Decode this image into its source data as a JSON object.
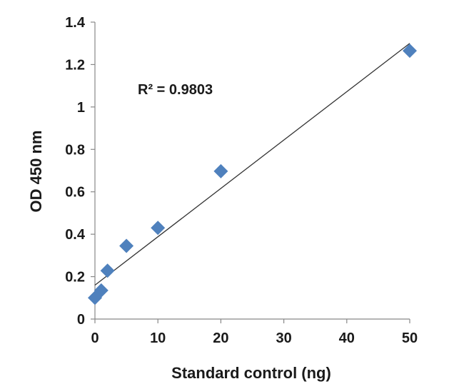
{
  "chart_data": {
    "type": "scatter",
    "xlabel": "Standard control (ng)",
    "ylabel": "OD 450 nm",
    "xlim": [
      0,
      50
    ],
    "ylim": [
      0,
      1.4
    ],
    "x_ticks": [
      "0",
      "10",
      "20",
      "30",
      "40",
      "50"
    ],
    "y_ticks": [
      "0",
      "0.2",
      "0.4",
      "0.6",
      "0.8",
      "1",
      "1.2",
      "1.4"
    ],
    "grid": false,
    "legend": "none",
    "marker_color": "#4f81bd",
    "series": [
      {
        "marker": "diamond",
        "x": [
          0,
          1,
          2,
          5,
          10,
          20,
          50
        ],
        "y": [
          0.1,
          0.135,
          0.228,
          0.345,
          0.43,
          0.697,
          1.265
        ]
      }
    ],
    "trendline": {
      "type": "linear",
      "color": "#333333",
      "x_range": [
        0,
        50
      ],
      "y_range": [
        0.16,
        1.3
      ]
    },
    "annotation": "R² = 0.9803"
  }
}
